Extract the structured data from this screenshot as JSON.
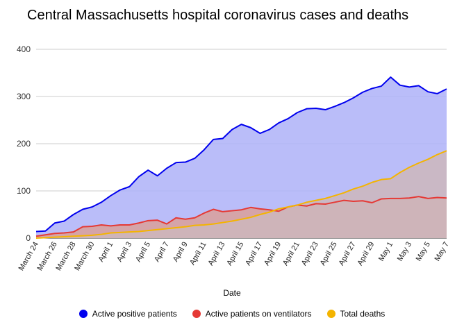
{
  "chart_data": {
    "type": "area",
    "title": "Central Massachusetts hospital coronavirus cases and deaths",
    "xlabel": "Date",
    "ylabel": "",
    "ylim": [
      0,
      400
    ],
    "yticks": [
      0,
      100,
      200,
      300,
      400
    ],
    "grid": true,
    "legend_position": "bottom",
    "x": [
      "March 24",
      "March 25",
      "March 26",
      "March 27",
      "March 28",
      "March 29",
      "March 30",
      "March 31",
      "April 1",
      "April 2",
      "April 3",
      "April 4",
      "April 5",
      "April 6",
      "April 7",
      "April 8",
      "April 9",
      "April 10",
      "April 11",
      "April 12",
      "April 13",
      "April 14",
      "April 15",
      "April 16",
      "April 17",
      "April 18",
      "April 19",
      "April 20",
      "April 21",
      "April 22",
      "April 23",
      "April 24",
      "April 25",
      "April 26",
      "April 27",
      "April 28",
      "April 29",
      "April 30",
      "May 1",
      "May 2",
      "May 3",
      "May 4",
      "May 5",
      "May 6",
      "May 7"
    ],
    "xtick_labels": [
      "March 24",
      "March 26",
      "March 28",
      "March 30",
      "April 1",
      "April 3",
      "April 5",
      "April 7",
      "April 9",
      "April 11",
      "April 13",
      "April 15",
      "April 17",
      "April 19",
      "April 21",
      "April 23",
      "April 25",
      "April 27",
      "April 29",
      "May 1",
      "May 3",
      "May 5",
      "May 7"
    ],
    "series": [
      {
        "name": "Active positive patients",
        "color": "#0000ee",
        "fill": "#aeb2f8",
        "values": [
          14,
          15,
          32,
          36,
          50,
          61,
          66,
          76,
          90,
          102,
          109,
          130,
          144,
          132,
          148,
          160,
          161,
          169,
          187,
          209,
          211,
          230,
          241,
          234,
          222,
          230,
          244,
          253,
          266,
          274,
          275,
          272,
          279,
          287,
          297,
          309,
          317,
          322,
          341,
          324,
          320,
          323,
          310,
          306,
          316
        ]
      },
      {
        "name": "Active patients on ventilators",
        "color": "#e53935",
        "fill": "#d9a09a",
        "values": [
          4,
          7,
          10,
          11,
          13,
          24,
          25,
          28,
          26,
          28,
          28,
          32,
          37,
          38,
          30,
          43,
          40,
          43,
          53,
          61,
          56,
          58,
          60,
          65,
          62,
          60,
          57,
          66,
          70,
          68,
          73,
          72,
          76,
          80,
          78,
          79,
          75,
          83,
          84,
          84,
          85,
          88,
          84,
          86,
          85
        ]
      },
      {
        "name": "Total deaths",
        "color": "#f4b400",
        "fill": "#cdb7bc",
        "values": [
          0,
          1,
          2,
          3,
          4,
          5,
          6,
          8,
          11,
          12,
          13,
          14,
          16,
          18,
          20,
          22,
          24,
          27,
          28,
          30,
          33,
          36,
          40,
          44,
          50,
          55,
          62,
          66,
          70,
          76,
          80,
          84,
          90,
          96,
          104,
          110,
          118,
          124,
          126,
          139,
          150,
          159,
          167,
          177,
          185
        ]
      }
    ]
  }
}
